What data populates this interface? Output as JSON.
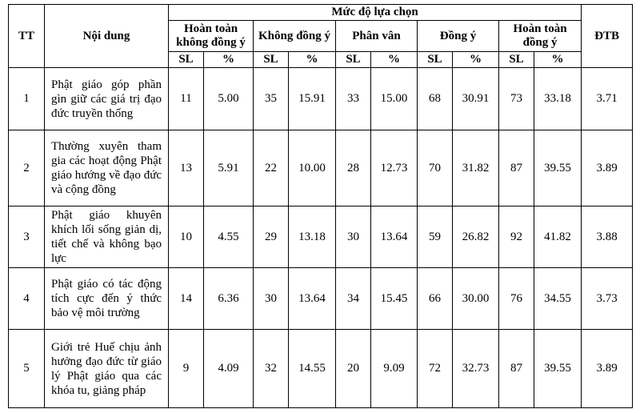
{
  "header": {
    "tt": "TT",
    "content": "Nội dung",
    "group": "Mức độ lựa chọn",
    "dtb": "ĐTB",
    "levels": [
      "Hoàn toàn không đồng ý",
      "Không đồng ý",
      "Phân vân",
      "Đồng ý",
      "Hoàn toàn đồng ý"
    ],
    "sl": "SL",
    "pct": "%"
  },
  "rows": [
    {
      "tt": "1",
      "content": "Phật giáo góp phần gìn giữ các giá trị đạo đức truyền thống",
      "cells": [
        "11",
        "5.00",
        "35",
        "15.91",
        "33",
        "15.00",
        "68",
        "30.91",
        "73",
        "33.18"
      ],
      "dtb": "3.71"
    },
    {
      "tt": "2",
      "content": "Thường xuyên tham gia các hoạt động Phật giáo hướng về đạo đức và cộng đồng",
      "cells": [
        "13",
        "5.91",
        "22",
        "10.00",
        "28",
        "12.73",
        "70",
        "31.82",
        "87",
        "39.55"
      ],
      "dtb": "3.89"
    },
    {
      "tt": "3",
      "content": "Phật giáo khuyên khích lối sống giản dị, tiết chế và không bạo lực",
      "cells": [
        "10",
        "4.55",
        "29",
        "13.18",
        "30",
        "13.64",
        "59",
        "26.82",
        "92",
        "41.82"
      ],
      "dtb": "3.88"
    },
    {
      "tt": "4",
      "content": "Phật giáo có tác động tích cực đến ý thức bảo vệ môi trường",
      "cells": [
        "14",
        "6.36",
        "30",
        "13.64",
        "34",
        "15.45",
        "66",
        "30.00",
        "76",
        "34.55"
      ],
      "dtb": "3.73"
    },
    {
      "tt": "5",
      "content": "Giới trẻ Huế chịu ảnh hưởng đạo đức từ giáo lý Phật giáo qua các khóa tu, giảng pháp",
      "cells": [
        "9",
        "4.09",
        "32",
        "14.55",
        "20",
        "9.09",
        "72",
        "32.73",
        "87",
        "39.55"
      ],
      "dtb": "3.89"
    }
  ]
}
